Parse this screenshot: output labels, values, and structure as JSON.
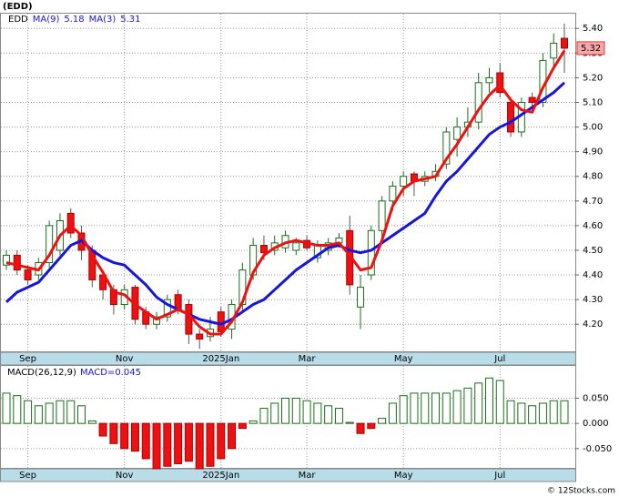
{
  "chart_data": {
    "type": "candlestick",
    "title": "(EDD)",
    "ticker": "EDD",
    "copyright": "© 12Stocks.com",
    "categories": [
      null,
      null,
      "Sep",
      null,
      null,
      null,
      null,
      null,
      null,
      null,
      null,
      "Nov",
      null,
      null,
      null,
      null,
      null,
      null,
      null,
      null,
      "2025Jan",
      null,
      null,
      null,
      null,
      null,
      null,
      null,
      "Mar",
      null,
      null,
      null,
      null,
      null,
      null,
      null,
      null,
      "May",
      null,
      null,
      null,
      null,
      null,
      null,
      null,
      null,
      "Jul",
      null,
      null,
      null,
      null,
      null,
      null
    ],
    "open": [
      4.44,
      4.48,
      4.42,
      4.4,
      4.45,
      4.5,
      4.65,
      4.57,
      4.5,
      4.4,
      4.34,
      4.28,
      4.35,
      4.25,
      4.2,
      4.23,
      4.32,
      4.28,
      4.16,
      4.15,
      4.25,
      4.18,
      4.28,
      4.4,
      4.52,
      4.5,
      4.51,
      4.5,
      4.54,
      4.47,
      4.5,
      4.53,
      4.58,
      4.27,
      4.4,
      4.58,
      4.7,
      4.76,
      4.81,
      4.78,
      4.8,
      4.85,
      4.95,
      5.0,
      5.02,
      5.18,
      5.22,
      5.1,
      4.98,
      5.12,
      5.1,
      5.28,
      5.36
    ],
    "high": [
      4.5,
      4.5,
      4.44,
      4.47,
      4.62,
      4.65,
      4.67,
      4.6,
      4.52,
      4.42,
      4.36,
      4.36,
      4.36,
      4.27,
      4.25,
      4.32,
      4.34,
      4.3,
      4.18,
      4.23,
      4.27,
      4.3,
      4.45,
      4.55,
      4.56,
      4.56,
      4.58,
      4.55,
      4.56,
      4.54,
      4.55,
      4.57,
      4.64,
      4.4,
      4.6,
      4.72,
      4.78,
      4.82,
      4.82,
      4.82,
      4.85,
      5.0,
      5.04,
      5.08,
      5.22,
      5.24,
      5.26,
      5.12,
      5.12,
      5.14,
      5.3,
      5.38,
      5.42
    ],
    "low": [
      4.42,
      4.4,
      4.36,
      4.38,
      4.43,
      4.48,
      4.55,
      4.46,
      4.35,
      4.3,
      4.24,
      4.26,
      4.2,
      4.18,
      4.18,
      4.21,
      4.24,
      4.12,
      4.1,
      4.13,
      4.15,
      4.14,
      4.25,
      4.38,
      4.46,
      4.48,
      4.49,
      4.48,
      4.5,
      4.45,
      4.48,
      4.51,
      4.32,
      4.18,
      4.38,
      4.55,
      4.66,
      4.72,
      4.72,
      4.76,
      4.78,
      4.83,
      4.88,
      4.96,
      4.99,
      5.14,
      5.12,
      4.96,
      4.96,
      5.06,
      5.08,
      5.24,
      5.22
    ],
    "close": [
      4.48,
      4.42,
      4.38,
      4.45,
      4.6,
      4.62,
      4.57,
      4.5,
      4.38,
      4.34,
      4.28,
      4.34,
      4.22,
      4.2,
      4.23,
      4.3,
      4.26,
      4.16,
      4.14,
      4.18,
      4.17,
      4.28,
      4.42,
      4.52,
      4.49,
      4.53,
      4.56,
      4.53,
      4.51,
      4.52,
      4.53,
      4.55,
      4.36,
      4.35,
      4.58,
      4.7,
      4.76,
      4.8,
      4.78,
      4.8,
      4.82,
      4.98,
      5.0,
      5.02,
      5.18,
      5.2,
      5.14,
      4.98,
      5.1,
      5.1,
      5.27,
      5.34,
      5.32
    ],
    "up_color": "#1a6e1a",
    "down_color": "#ee1111",
    "series": [
      {
        "name": "MA(9)",
        "color": "#1515dd",
        "values": [
          4.29,
          4.33,
          4.35,
          4.37,
          4.42,
          4.47,
          4.52,
          4.54,
          4.5,
          4.47,
          4.45,
          4.44,
          4.4,
          4.36,
          4.31,
          4.28,
          4.26,
          4.24,
          4.22,
          4.21,
          4.2,
          4.22,
          4.25,
          4.28,
          4.3,
          4.34,
          4.38,
          4.42,
          4.45,
          4.48,
          4.51,
          4.52,
          4.5,
          4.49,
          4.5,
          4.53,
          4.56,
          4.59,
          4.62,
          4.65,
          4.72,
          4.78,
          4.82,
          4.87,
          4.92,
          4.97,
          5.0,
          5.02,
          5.05,
          5.08,
          5.11,
          5.14,
          5.18
        ]
      },
      {
        "name": "MA(3)",
        "color": "#ee1111",
        "values": [
          4.45,
          4.44,
          4.43,
          4.42,
          4.48,
          4.56,
          4.6,
          4.56,
          4.48,
          4.41,
          4.33,
          4.32,
          4.28,
          4.25,
          4.22,
          4.24,
          4.26,
          4.24,
          4.19,
          4.16,
          4.16,
          4.21,
          4.29,
          4.41,
          4.48,
          4.51,
          4.53,
          4.54,
          4.53,
          4.52,
          4.52,
          4.53,
          4.48,
          4.42,
          4.43,
          4.54,
          4.68,
          4.75,
          4.78,
          4.79,
          4.8,
          4.87,
          4.93,
          5.0,
          5.07,
          5.13,
          5.17,
          5.11,
          5.07,
          5.06,
          5.16,
          5.24,
          5.31
        ]
      }
    ],
    "ylim": [
      4.09,
      5.46
    ],
    "yticks": [
      {
        "value": 4.2,
        "label": "4.20"
      },
      {
        "value": 4.3,
        "label": "4.30"
      },
      {
        "value": 4.4,
        "label": "4.40"
      },
      {
        "value": 4.5,
        "label": "4.50"
      },
      {
        "value": 4.6,
        "label": "4.60"
      },
      {
        "value": 4.7,
        "label": "4.70"
      },
      {
        "value": 4.8,
        "label": "4.80"
      },
      {
        "value": 4.9,
        "label": "4.90"
      },
      {
        "value": 5.0,
        "label": "5.00"
      },
      {
        "value": 5.1,
        "label": "5.10"
      },
      {
        "value": 5.2,
        "label": "5.20"
      },
      {
        "value": 5.3,
        "label": "5.30"
      },
      {
        "value": 5.4,
        "label": "5.40"
      }
    ],
    "grid": true,
    "macd": {
      "name": "MACD(26,12,9)",
      "value_prefix": "MACD=",
      "color": "#1a6e1a",
      "negative_color": "#ee1111",
      "values": [
        0.06,
        0.055,
        0.045,
        0.035,
        0.04,
        0.045,
        0.045,
        0.035,
        0.005,
        -0.025,
        -0.04,
        -0.05,
        -0.055,
        -0.07,
        -0.09,
        -0.085,
        -0.08,
        -0.075,
        -0.09,
        -0.085,
        -0.07,
        -0.05,
        -0.01,
        0.005,
        0.03,
        0.04,
        0.05,
        0.05,
        0.045,
        0.04,
        0.035,
        0.03,
        0.002,
        -0.02,
        -0.01,
        0.01,
        0.04,
        0.055,
        0.06,
        0.06,
        0.06,
        0.06,
        0.065,
        0.07,
        0.08,
        0.09,
        0.085,
        0.045,
        0.04,
        0.035,
        0.04,
        0.045,
        0.045
      ],
      "ylim": [
        -0.09,
        0.114
      ],
      "yticks": [
        {
          "value": -0.05,
          "label": "-0.050"
        },
        {
          "value": 0,
          "label": "0.000"
        },
        {
          "value": 0.05,
          "label": "0.050"
        }
      ]
    }
  }
}
